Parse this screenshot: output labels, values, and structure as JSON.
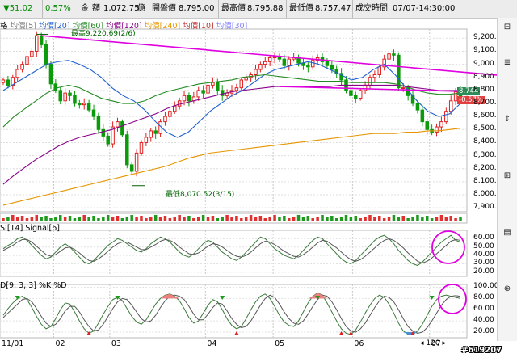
{
  "info_bar": {
    "change": "▼51.02",
    "change_pct": "0.57%",
    "amount_label": "金",
    "amount_unit_label": "額",
    "amount_value": "1,072.75",
    "amount_unit": "億",
    "open_label": "開盤價",
    "open_value": "8,795.00",
    "high_label": "最高價",
    "high_value": "8,795.88",
    "low_label": "最低價",
    "low_value": "8,757.47",
    "time_label": "成交時間",
    "time_value": "07/07-14:30:00"
  },
  "price_pane": {
    "legend_prefix": "格",
    "ma_legend": [
      {
        "label": "均價[5]",
        "color": "#7a7a7a"
      },
      {
        "label": "均價[20]",
        "color": "#1f5fcf"
      },
      {
        "label": "均價[60]",
        "color": "#228b22"
      },
      {
        "label": "均價[120]",
        "color": "#8b008b"
      },
      {
        "label": "均價[240]",
        "color": "#e69500"
      },
      {
        "label": "均價[10]",
        "color": "#c03030"
      },
      {
        "label": "均價[30]",
        "color": "#8080ff"
      }
    ],
    "high_annotation": "最高9,220.69(2/6)",
    "low_annotation": "最低8,070.52(3/15)",
    "last_price_tag": "8,744",
    "last_change_tag": "-0.57%"
  },
  "rsi_pane": {
    "legend": "SI[14] Signal[6]"
  },
  "kd_pane": {
    "legend": "D[9, 3, 3] %K %D"
  },
  "x_labels": [
    "11/01",
    "02",
    "03",
    "04",
    "05",
    "06",
    "07"
  ],
  "bottom_bar": {
    "zoom": "120"
  },
  "right_strip": {
    "buttons": [
      "⊟",
      "≣",
      "↕",
      "⊞",
      "▤",
      "⊕"
    ]
  },
  "watermark": "#619207",
  "chart_data": [
    {
      "type": "candlestick",
      "title": "",
      "x_labels": [
        "11/01",
        "02",
        "03",
        "04",
        "05",
        "06",
        "07"
      ],
      "y_ticks": [
        7900,
        8000,
        8100,
        8200,
        8300,
        8400,
        8500,
        8600,
        8700,
        8800,
        8900,
        9000,
        9100,
        9200
      ],
      "ylim": [
        7870,
        9270
      ],
      "close": [
        8880,
        8840,
        8900,
        8960,
        9000,
        9060,
        9100,
        9220,
        9150,
        9000,
        8850,
        8800,
        8720,
        8780,
        8760,
        8700,
        8690,
        8700,
        8650,
        8600,
        8500,
        8450,
        8390,
        8520,
        8560,
        8460,
        8230,
        8180,
        8320,
        8400,
        8440,
        8490,
        8470,
        8560,
        8600,
        8640,
        8680,
        8720,
        8760,
        8720,
        8750,
        8800,
        8780,
        8840,
        8860,
        8800,
        8760,
        8780,
        8800,
        8820,
        8880,
        8900,
        8920,
        8960,
        9000,
        9020,
        9050,
        9060,
        9040,
        8990,
        9040,
        9050,
        9010,
        8990,
        8980,
        9030,
        9050,
        9020,
        8990,
        8960,
        8930,
        8880,
        8800,
        8760,
        8740,
        8800,
        8840,
        8900,
        8920,
        8980,
        9040,
        9080,
        9070,
        8820,
        8820,
        8760,
        8700,
        8650,
        8560,
        8500,
        8480,
        8520,
        8560,
        8640,
        8720,
        8790,
        8744
      ],
      "volume_bars": "red/green bars, low amplitude, uniform",
      "moving_averages": {
        "MA20": [
          8800,
          8850,
          8900,
          8950,
          9000,
          9020,
          9030,
          9000,
          8960,
          8900,
          8820,
          8760,
          8720,
          8650,
          8560,
          8480,
          8440,
          8480,
          8560,
          8640,
          8700,
          8760,
          8800,
          8860,
          8920,
          8960,
          8980,
          9000,
          9020,
          9000,
          8960,
          8920,
          8880,
          8900,
          8960,
          9000,
          8920,
          8820,
          8720,
          8640,
          8600,
          8620,
          8700
        ],
        "MA60": [
          8520,
          8600,
          8660,
          8720,
          8780,
          8820,
          8840,
          8820,
          8780,
          8740,
          8720,
          8700,
          8700,
          8720,
          8760,
          8790,
          8810,
          8830,
          8850,
          8860,
          8870,
          8880,
          8900,
          8910,
          8920,
          8910,
          8900,
          8890,
          8880,
          8870,
          8870,
          8870,
          8860,
          8860,
          8860,
          8860,
          8850,
          8830,
          8800,
          8780,
          8770,
          8770,
          8780
        ],
        "MA120": [
          8080,
          8150,
          8210,
          8270,
          8320,
          8370,
          8410,
          8440,
          8460,
          8480,
          8500,
          8530,
          8560,
          8590,
          8620,
          8660,
          8690,
          8710,
          8730,
          8750,
          8770,
          8790,
          8800,
          8810,
          8820,
          8830,
          8830,
          8830,
          8830,
          8830,
          8830,
          8840,
          8840,
          8840,
          8840,
          8840,
          8840,
          8830,
          8820,
          8810,
          8800,
          8800,
          8800
        ],
        "MA240": [
          7920,
          7940,
          7960,
          7980,
          8000,
          8020,
          8040,
          8060,
          8080,
          8100,
          8120,
          8140,
          8160,
          8180,
          8200,
          8220,
          8250,
          8280,
          8300,
          8320,
          8330,
          8340,
          8350,
          8360,
          8370,
          8380,
          8390,
          8400,
          8410,
          8420,
          8430,
          8440,
          8450,
          8460,
          8470,
          8470,
          8470,
          8480,
          8480,
          8490,
          8490,
          8500,
          8510
        ]
      },
      "trendline": {
        "from": [
          8,
          9220
        ],
        "to": [
          96,
          8990
        ],
        "color": "#e000e0"
      },
      "annotations": {
        "high": "最高9,220.69(2/6)",
        "low": "最低8,070.52(3/15)"
      }
    },
    {
      "type": "line",
      "title": "",
      "y_ticks": [
        20,
        30,
        40,
        50,
        60
      ],
      "ylim": [
        15,
        70
      ],
      "series": [
        {
          "values": [
            48,
            52,
            55,
            60,
            62,
            58,
            52,
            46,
            40,
            36,
            38,
            44,
            50,
            54,
            50,
            44,
            38,
            32,
            30,
            34,
            40,
            46,
            52,
            56,
            60,
            58,
            54,
            50,
            46,
            44,
            48,
            54,
            58,
            62,
            60,
            56,
            50,
            44,
            40,
            38,
            42,
            48,
            54,
            58,
            56,
            50,
            44,
            40,
            36,
            34,
            38,
            44,
            50,
            56,
            62,
            60,
            54,
            48,
            44,
            40,
            38,
            36,
            40,
            46,
            52,
            58,
            62,
            60,
            54,
            48,
            42,
            36,
            32,
            30,
            34,
            40,
            46,
            52,
            58,
            62,
            64,
            60,
            54,
            46,
            40,
            34,
            30,
            28,
            32,
            38,
            44,
            50,
            56,
            60,
            64,
            58,
            56
          ]
        },
        {
          "values": [
            46,
            49,
            52,
            56,
            59,
            59,
            56,
            51,
            46,
            41,
            39,
            41,
            45,
            49,
            50,
            47,
            43,
            38,
            34,
            33,
            36,
            40,
            45,
            50,
            54,
            56,
            56,
            53,
            50,
            47,
            47,
            50,
            53,
            57,
            59,
            58,
            55,
            50,
            46,
            42,
            41,
            43,
            47,
            51,
            54,
            53,
            50,
            46,
            42,
            39,
            38,
            40,
            44,
            49,
            54,
            57,
            56,
            53,
            49,
            45,
            42,
            39,
            38,
            41,
            45,
            50,
            55,
            58,
            57,
            53,
            49,
            44,
            39,
            35,
            33,
            35,
            39,
            44,
            49,
            54,
            58,
            60,
            58,
            54,
            49,
            43,
            38,
            33,
            31,
            33,
            37,
            42,
            47,
            52,
            57,
            59,
            58
          ]
        }
      ]
    },
    {
      "type": "line",
      "title": "",
      "y_ticks": [
        20,
        40,
        60,
        80,
        100
      ],
      "ylim": [
        10,
        105
      ],
      "series": [
        {
          "values": [
            50,
            62,
            72,
            80,
            84,
            78,
            64,
            48,
            34,
            26,
            30,
            44,
            60,
            72,
            70,
            56,
            40,
            26,
            18,
            22,
            36,
            52,
            66,
            78,
            82,
            76,
            62,
            48,
            38,
            34,
            42,
            56,
            70,
            80,
            86,
            88,
            84,
            76,
            62,
            46,
            36,
            40,
            54,
            68,
            78,
            74,
            60,
            44,
            32,
            26,
            30,
            44,
            60,
            74,
            84,
            88,
            80,
            66,
            50,
            38,
            32,
            30,
            40,
            56,
            72,
            84,
            90,
            86,
            72,
            56,
            40,
            26,
            18,
            16,
            24,
            38,
            54,
            68,
            80,
            86,
            82,
            70,
            54,
            36,
            22,
            16,
            16,
            22,
            34,
            50,
            66,
            78,
            84,
            86,
            84,
            82,
            80
          ]
        },
        {
          "values": [
            46,
            54,
            62,
            70,
            78,
            80,
            74,
            62,
            48,
            36,
            30,
            34,
            44,
            58,
            66,
            66,
            56,
            42,
            30,
            22,
            24,
            34,
            48,
            62,
            74,
            80,
            78,
            68,
            56,
            44,
            38,
            40,
            50,
            64,
            76,
            84,
            86,
            84,
            78,
            66,
            52,
            42,
            42,
            52,
            64,
            72,
            70,
            58,
            44,
            34,
            28,
            30,
            40,
            54,
            68,
            80,
            86,
            82,
            70,
            56,
            44,
            36,
            34,
            40,
            52,
            66,
            78,
            86,
            84,
            74,
            60,
            44,
            30,
            22,
            20,
            26,
            36,
            50,
            64,
            76,
            84,
            82,
            74,
            60,
            44,
            30,
            22,
            18,
            20,
            28,
            40,
            54,
            68,
            78,
            84,
            85,
            84
          ]
        }
      ]
    }
  ]
}
